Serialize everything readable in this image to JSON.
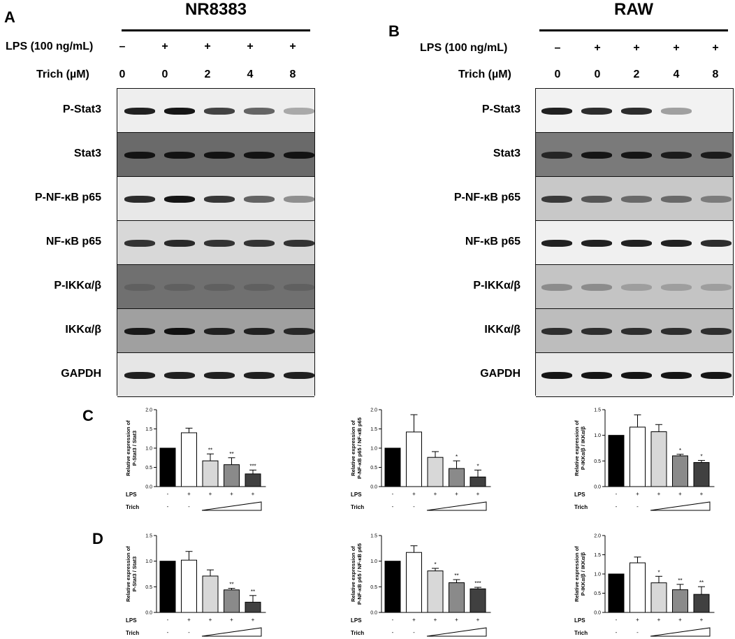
{
  "panels": {
    "A": "A",
    "B": "B",
    "C": "C",
    "D": "D"
  },
  "blot_nr": {
    "title": "NR8383",
    "lps_label": "LPS (100 ng/mL)",
    "trich_label": "Trich (µM)",
    "lps_marks": [
      "–",
      "+",
      "+",
      "+",
      "+"
    ],
    "trich_doses": [
      "0",
      "0",
      "2",
      "4",
      "8"
    ],
    "rows": [
      "P-Stat3",
      "Stat3",
      "P-NF-κB p65",
      "NF-κB p65",
      "P-IKKα/β",
      "IKKα/β",
      "GAPDH"
    ]
  },
  "blot_raw": {
    "title": "RAW",
    "lps_label": "LPS (100 ng/mL)",
    "trich_label": "Trich (µM)",
    "lps_marks": [
      "–",
      "+",
      "+",
      "+",
      "+"
    ],
    "trich_doses": [
      "0",
      "0",
      "2",
      "4",
      "8"
    ],
    "rows": [
      "P-Stat3",
      "Stat3",
      "P-NF-κB p65",
      "NF-κB p65",
      "P-IKKα/β",
      "IKKα/β",
      "GAPDH"
    ]
  },
  "chart_data": [
    {
      "type": "bar",
      "panel": "C",
      "ylabel": [
        "Relative expression of",
        "P-Stat3 / Stat3"
      ],
      "ylim": [
        0,
        2.0
      ],
      "yticks": [
        "0.0",
        "0.5",
        "1.0",
        "1.5",
        "2.0"
      ],
      "values": [
        1.0,
        1.4,
        0.67,
        0.57,
        0.33
      ],
      "errors": [
        0,
        0.12,
        0.18,
        0.18,
        0.1
      ],
      "sig": [
        "",
        "",
        "**",
        "**",
        "***"
      ],
      "lps": [
        "-",
        "+",
        "+",
        "+",
        "+"
      ],
      "trich": [
        "-",
        "-"
      ],
      "lps_label": "LPS",
      "trich_label": "Trich"
    },
    {
      "type": "bar",
      "panel": "C",
      "ylabel": [
        "Relative expression of",
        "P-NF-κB p65 / NF-κB p65"
      ],
      "ylim": [
        0,
        2.0
      ],
      "yticks": [
        "0.0",
        "0.5",
        "1.0",
        "1.5",
        "2.0"
      ],
      "values": [
        1.0,
        1.42,
        0.76,
        0.47,
        0.25
      ],
      "errors": [
        0,
        0.45,
        0.15,
        0.2,
        0.18
      ],
      "sig": [
        "",
        "",
        "",
        "*",
        "*"
      ],
      "lps": [
        "-",
        "+",
        "+",
        "+",
        "+"
      ],
      "trich": [
        "-",
        "-"
      ],
      "lps_label": "LPS",
      "trich_label": "Trich"
    },
    {
      "type": "bar",
      "panel": "C",
      "ylabel": [
        "Relative expression of",
        "P-IKKα/β / IKKα/β"
      ],
      "ylim": [
        0,
        1.5
      ],
      "yticks": [
        "0.0",
        "0.5",
        "1.0",
        "1.5"
      ],
      "values": [
        1.0,
        1.16,
        1.07,
        0.6,
        0.47
      ],
      "errors": [
        0,
        0.24,
        0.14,
        0.03,
        0.04
      ],
      "sig": [
        "",
        "",
        "",
        "*",
        "*"
      ],
      "lps": [
        "-",
        "+",
        "+",
        "+",
        "+"
      ],
      "trich": [
        "-",
        "-"
      ],
      "lps_label": "LPS",
      "trich_label": "Trich"
    },
    {
      "type": "bar",
      "panel": "D",
      "ylabel": [
        "Relative expression of",
        "P-Stat3 / Stat3"
      ],
      "ylim": [
        0,
        1.5
      ],
      "yticks": [
        "0.0",
        "0.5",
        "1.0",
        "1.5"
      ],
      "values": [
        1.0,
        1.02,
        0.71,
        0.44,
        0.2
      ],
      "errors": [
        0,
        0.17,
        0.12,
        0.03,
        0.13
      ],
      "sig": [
        "",
        "",
        "",
        "**",
        "**"
      ],
      "lps": [
        "-",
        "+",
        "+",
        "+",
        "+"
      ],
      "trich": [
        "-",
        "-"
      ],
      "lps_label": "LPS",
      "trich_label": "Trich"
    },
    {
      "type": "bar",
      "panel": "D",
      "ylabel": [
        "Relative expression of",
        "P-NF-κB p65 / NF-κB p65"
      ],
      "ylim": [
        0,
        1.5
      ],
      "yticks": [
        "0.0",
        "0.5",
        "1.0",
        "1.5"
      ],
      "values": [
        1.0,
        1.17,
        0.81,
        0.58,
        0.46
      ],
      "errors": [
        0,
        0.13,
        0.05,
        0.06,
        0.03
      ],
      "sig": [
        "",
        "",
        "*",
        "**",
        "***"
      ],
      "lps": [
        "-",
        "+",
        "+",
        "+",
        "+"
      ],
      "trich": [
        "-",
        "-"
      ],
      "lps_label": "LPS",
      "trich_label": "Trich"
    },
    {
      "type": "bar",
      "panel": "D",
      "ylabel": [
        "Relative expression of",
        "P-IKKα/β / IKKα/β"
      ],
      "ylim": [
        0,
        2.0
      ],
      "yticks": [
        "0.0",
        "0.5",
        "1.0",
        "1.5",
        "2.0"
      ],
      "values": [
        1.0,
        1.29,
        0.77,
        0.59,
        0.47
      ],
      "errors": [
        0,
        0.15,
        0.17,
        0.14,
        0.2
      ],
      "sig": [
        "",
        "",
        "*",
        "**",
        "**"
      ],
      "lps": [
        "-",
        "+",
        "+",
        "+",
        "+"
      ],
      "trich": [
        "-",
        "-"
      ],
      "lps_label": "LPS",
      "trich_label": "Trich"
    }
  ]
}
